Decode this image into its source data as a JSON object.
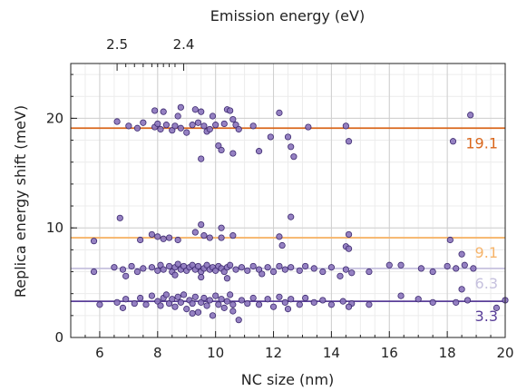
{
  "chart_data": {
    "type": "scatter",
    "xlabel": "NC size (nm)",
    "ylabel": "Replica energy shift (meV)",
    "top_xlabel": "Emission energy (eV)",
    "xlim": [
      5,
      20
    ],
    "ylim": [
      0,
      25
    ],
    "x_ticks": [
      6,
      8,
      10,
      12,
      14,
      16,
      18,
      20
    ],
    "y_ticks": [
      0,
      10,
      20
    ],
    "top_ticks": [
      {
        "label": "2.5",
        "x": 6.6
      },
      {
        "label": "2.4",
        "x": 8.9
      }
    ],
    "grid": true,
    "point_color": "#8a73bb",
    "point_edge": "#3d2a70",
    "hlines": [
      {
        "label": "19.1",
        "y": 19.1,
        "color": "#d9661b"
      },
      {
        "label": "9.1",
        "y": 9.1,
        "color": "#f6b46a"
      },
      {
        "label": "6.3",
        "y": 6.3,
        "color": "#c6c1de"
      },
      {
        "label": "3.3",
        "y": 3.3,
        "color": "#5a3f99"
      }
    ],
    "series": [
      {
        "points": [
          [
            6.6,
            19.7
          ],
          [
            7.0,
            19.3
          ],
          [
            7.3,
            19.1
          ],
          [
            7.5,
            19.6
          ],
          [
            7.9,
            19.2
          ],
          [
            8.0,
            19.5
          ],
          [
            7.9,
            20.7
          ],
          [
            8.2,
            20.6
          ],
          [
            8.1,
            19.0
          ],
          [
            8.3,
            19.4
          ],
          [
            8.5,
            18.9
          ],
          [
            8.6,
            19.3
          ],
          [
            8.7,
            20.2
          ],
          [
            8.8,
            21.0
          ],
          [
            8.8,
            19.1
          ],
          [
            9.0,
            18.7
          ],
          [
            9.2,
            19.4
          ],
          [
            9.3,
            20.8
          ],
          [
            9.4,
            19.6
          ],
          [
            9.5,
            20.6
          ],
          [
            9.6,
            19.3
          ],
          [
            9.7,
            18.8
          ],
          [
            9.8,
            19.0
          ],
          [
            9.9,
            20.2
          ],
          [
            10.0,
            19.4
          ],
          [
            10.1,
            17.5
          ],
          [
            10.2,
            17.1
          ],
          [
            10.3,
            19.5
          ],
          [
            10.4,
            20.8
          ],
          [
            10.5,
            20.7
          ],
          [
            10.6,
            19.9
          ],
          [
            10.7,
            19.4
          ],
          [
            10.8,
            19.0
          ],
          [
            9.5,
            16.3
          ],
          [
            10.6,
            16.8
          ],
          [
            11.3,
            19.3
          ],
          [
            11.5,
            17.0
          ],
          [
            11.9,
            18.3
          ],
          [
            12.2,
            20.5
          ],
          [
            12.5,
            18.3
          ],
          [
            12.6,
            17.4
          ],
          [
            12.7,
            16.5
          ],
          [
            13.2,
            19.2
          ],
          [
            14.5,
            19.3
          ],
          [
            14.6,
            17.9
          ],
          [
            18.2,
            17.9
          ],
          [
            18.8,
            20.3
          ],
          [
            6.7,
            10.9
          ],
          [
            7.8,
            9.4
          ],
          [
            8.0,
            9.2
          ],
          [
            8.2,
            9.0
          ],
          [
            8.4,
            9.1
          ],
          [
            8.7,
            8.9
          ],
          [
            9.3,
            9.6
          ],
          [
            9.5,
            10.3
          ],
          [
            9.6,
            9.3
          ],
          [
            9.8,
            9.1
          ],
          [
            10.2,
            10.0
          ],
          [
            10.6,
            9.3
          ],
          [
            10.2,
            9.1
          ],
          [
            12.2,
            9.2
          ],
          [
            12.6,
            11.0
          ],
          [
            14.6,
            9.4
          ],
          [
            5.8,
            8.8
          ],
          [
            7.4,
            8.9
          ],
          [
            12.3,
            8.4
          ],
          [
            14.5,
            8.3
          ],
          [
            14.6,
            8.1
          ],
          [
            18.1,
            8.9
          ],
          [
            6.5,
            6.4
          ],
          [
            6.8,
            6.2
          ],
          [
            7.1,
            6.5
          ],
          [
            7.3,
            6.0
          ],
          [
            7.5,
            6.3
          ],
          [
            7.8,
            6.4
          ],
          [
            8.0,
            6.1
          ],
          [
            8.1,
            6.6
          ],
          [
            8.2,
            6.2
          ],
          [
            8.4,
            6.5
          ],
          [
            8.5,
            6.0
          ],
          [
            8.6,
            6.4
          ],
          [
            8.7,
            6.7
          ],
          [
            8.8,
            6.2
          ],
          [
            8.9,
            6.5
          ],
          [
            9.0,
            6.1
          ],
          [
            9.1,
            6.4
          ],
          [
            9.2,
            6.6
          ],
          [
            9.3,
            6.2
          ],
          [
            9.4,
            6.5
          ],
          [
            9.5,
            6.0
          ],
          [
            9.6,
            6.3
          ],
          [
            9.7,
            6.6
          ],
          [
            9.8,
            6.2
          ],
          [
            9.9,
            6.4
          ],
          [
            10.0,
            6.1
          ],
          [
            10.1,
            6.5
          ],
          [
            10.2,
            6.3
          ],
          [
            10.3,
            6.0
          ],
          [
            10.4,
            6.4
          ],
          [
            10.5,
            6.6
          ],
          [
            10.7,
            6.2
          ],
          [
            10.9,
            6.4
          ],
          [
            11.1,
            6.1
          ],
          [
            11.3,
            6.5
          ],
          [
            11.5,
            6.2
          ],
          [
            11.8,
            6.4
          ],
          [
            12.0,
            6.0
          ],
          [
            12.2,
            6.5
          ],
          [
            12.4,
            6.2
          ],
          [
            12.6,
            6.4
          ],
          [
            12.9,
            6.1
          ],
          [
            13.1,
            6.5
          ],
          [
            13.4,
            6.3
          ],
          [
            13.7,
            6.0
          ],
          [
            14.0,
            6.4
          ],
          [
            14.5,
            6.2
          ],
          [
            14.7,
            5.9
          ],
          [
            15.3,
            6.0
          ],
          [
            16.0,
            6.6
          ],
          [
            16.4,
            6.6
          ],
          [
            17.1,
            6.3
          ],
          [
            17.5,
            6.0
          ],
          [
            18.0,
            6.5
          ],
          [
            18.3,
            6.3
          ],
          [
            18.5,
            7.6
          ],
          [
            18.6,
            6.6
          ],
          [
            18.9,
            6.3
          ],
          [
            5.8,
            6.0
          ],
          [
            6.9,
            5.6
          ],
          [
            8.6,
            5.7
          ],
          [
            9.5,
            5.5
          ],
          [
            10.4,
            5.4
          ],
          [
            11.6,
            5.8
          ],
          [
            14.3,
            5.6
          ],
          [
            6.0,
            3.0
          ],
          [
            6.6,
            3.2
          ],
          [
            6.9,
            3.5
          ],
          [
            7.2,
            3.1
          ],
          [
            7.4,
            3.6
          ],
          [
            7.6,
            3.0
          ],
          [
            7.8,
            3.8
          ],
          [
            8.0,
            3.3
          ],
          [
            8.1,
            2.9
          ],
          [
            8.2,
            3.6
          ],
          [
            8.3,
            3.9
          ],
          [
            8.4,
            3.1
          ],
          [
            8.5,
            3.5
          ],
          [
            8.6,
            2.8
          ],
          [
            8.7,
            3.7
          ],
          [
            8.8,
            3.2
          ],
          [
            8.9,
            3.9
          ],
          [
            9.0,
            2.6
          ],
          [
            9.1,
            3.4
          ],
          [
            9.2,
            3.1
          ],
          [
            9.3,
            3.7
          ],
          [
            9.4,
            2.3
          ],
          [
            9.5,
            3.2
          ],
          [
            9.6,
            3.6
          ],
          [
            9.7,
            2.9
          ],
          [
            9.8,
            3.4
          ],
          [
            9.9,
            2.0
          ],
          [
            10.0,
            3.8
          ],
          [
            10.1,
            3.0
          ],
          [
            10.2,
            3.5
          ],
          [
            10.3,
            2.7
          ],
          [
            10.4,
            3.3
          ],
          [
            10.5,
            3.9
          ],
          [
            10.6,
            3.0
          ],
          [
            10.8,
            1.6
          ],
          [
            10.9,
            3.4
          ],
          [
            11.1,
            3.1
          ],
          [
            11.3,
            3.6
          ],
          [
            11.5,
            3.0
          ],
          [
            11.8,
            3.5
          ],
          [
            12.0,
            2.8
          ],
          [
            12.2,
            3.7
          ],
          [
            12.4,
            3.2
          ],
          [
            12.6,
            3.5
          ],
          [
            12.9,
            3.0
          ],
          [
            13.1,
            3.6
          ],
          [
            13.4,
            3.2
          ],
          [
            13.7,
            3.4
          ],
          [
            14.0,
            3.0
          ],
          [
            14.4,
            3.3
          ],
          [
            14.7,
            3.1
          ],
          [
            15.3,
            3.0
          ],
          [
            16.4,
            3.8
          ],
          [
            17.0,
            3.5
          ],
          [
            17.5,
            3.2
          ],
          [
            18.3,
            3.2
          ],
          [
            18.5,
            4.4
          ],
          [
            18.7,
            3.4
          ],
          [
            19.7,
            2.7
          ],
          [
            20.0,
            3.4
          ],
          [
            6.8,
            2.7
          ],
          [
            9.2,
            2.2
          ],
          [
            10.6,
            2.4
          ],
          [
            12.5,
            2.6
          ],
          [
            14.6,
            2.8
          ]
        ]
      }
    ]
  }
}
